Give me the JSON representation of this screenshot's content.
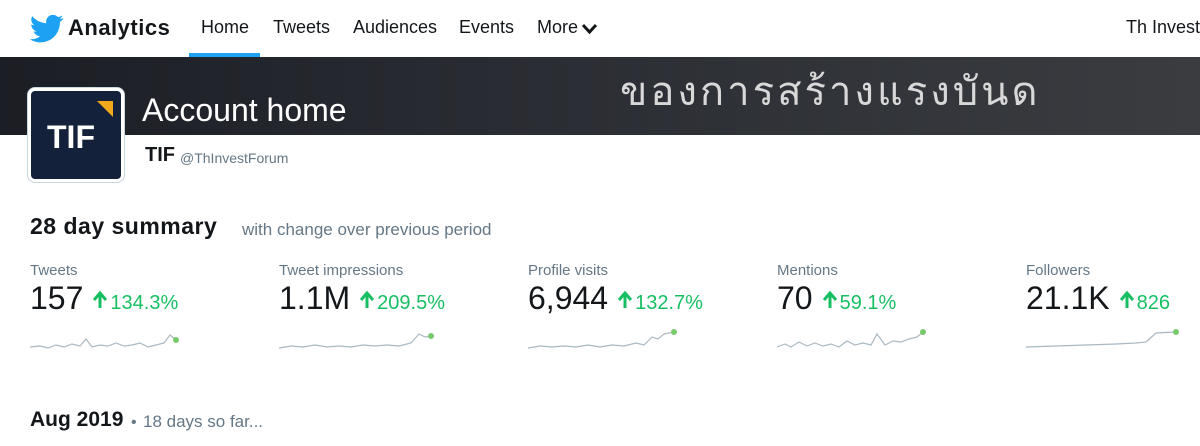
{
  "header": {
    "brand": "Analytics",
    "nav": [
      "Home",
      "Tweets",
      "Audiences",
      "Events",
      "More"
    ],
    "account_menu": "Th Invest"
  },
  "banner": {
    "text": "ของการสร้างแรงบันด"
  },
  "profile": {
    "logo": "TIF",
    "title": "Account home",
    "name": "TIF",
    "handle": "@ThInvestForum"
  },
  "summary": {
    "title": "28 day summary",
    "subtitle": "with change over previous period",
    "stats": [
      {
        "label": "Tweets",
        "value": "157",
        "change": "134.3%"
      },
      {
        "label": "Tweet impressions",
        "value": "1.1M",
        "change": "209.5%"
      },
      {
        "label": "Profile visits",
        "value": "6,944",
        "change": "132.7%"
      },
      {
        "label": "Mentions",
        "value": "70",
        "change": "59.1%"
      },
      {
        "label": "Followers",
        "value": "21.1K",
        "change": "826"
      }
    ]
  },
  "period": {
    "month": "Aug 2019",
    "note": "18 days so far..."
  }
}
